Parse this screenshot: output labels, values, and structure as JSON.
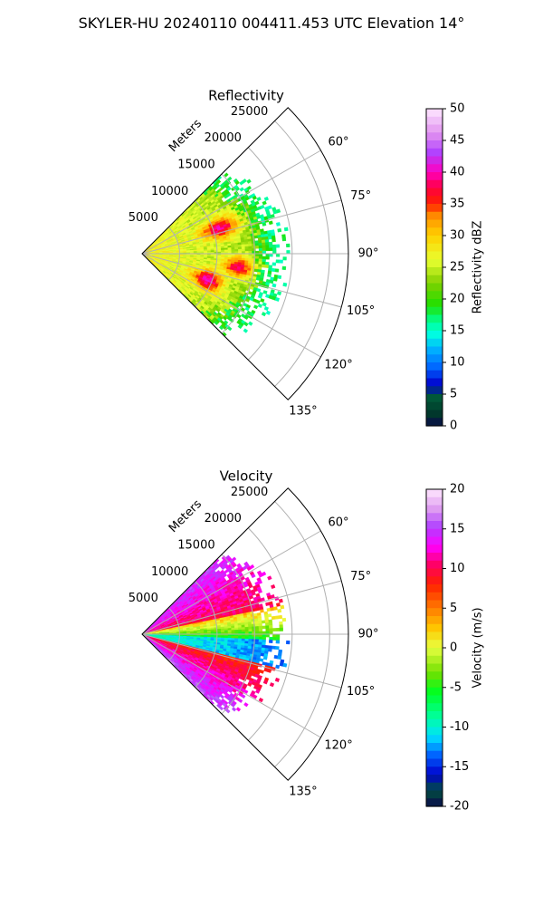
{
  "title": "SKYLER-HU  20240110  004411.453 UTC Elevation 14°",
  "chart_data": [
    {
      "type": "polar-sector",
      "title": "Reflectivity",
      "radial_label": "Meters",
      "radial_ticks": [
        "5000",
        "10000",
        "15000",
        "20000",
        "25000"
      ],
      "angle_ticks": [
        "60°",
        "75°",
        "90°",
        "105°",
        "120°",
        "135°"
      ],
      "angle_range_deg": [
        45,
        135
      ],
      "range_max_m": 27500,
      "colorbar": {
        "label": "Reflectivity dBZ",
        "min": 0,
        "max": 50,
        "ticks": [
          "0",
          "5",
          "10",
          "15",
          "20",
          "25",
          "30",
          "35",
          "40",
          "45",
          "50"
        ]
      },
      "field_description": "echo mostly 15–30 dBZ out to ~18000 m, with 35–40 dBZ cores near 8000–12000 m"
    },
    {
      "type": "polar-sector",
      "title": "Velocity",
      "radial_label": "Meters",
      "radial_ticks": [
        "5000",
        "10000",
        "15000",
        "20000",
        "25000"
      ],
      "angle_ticks": [
        "60°",
        "75°",
        "90°",
        "105°",
        "120°",
        "135°"
      ],
      "angle_range_deg": [
        45,
        135
      ],
      "range_max_m": 27500,
      "colorbar": {
        "label": "Velocity (m/s)",
        "min": -20,
        "max": 20,
        "ticks": [
          "-20",
          "-15",
          "-10",
          "-5",
          "0",
          "5",
          "10",
          "15",
          "20"
        ]
      },
      "field_description": "positive velocities (10–20 m/s) on the upper and lower flanks, negative (-10 to -15 m/s) along the 90–100° center"
    }
  ]
}
